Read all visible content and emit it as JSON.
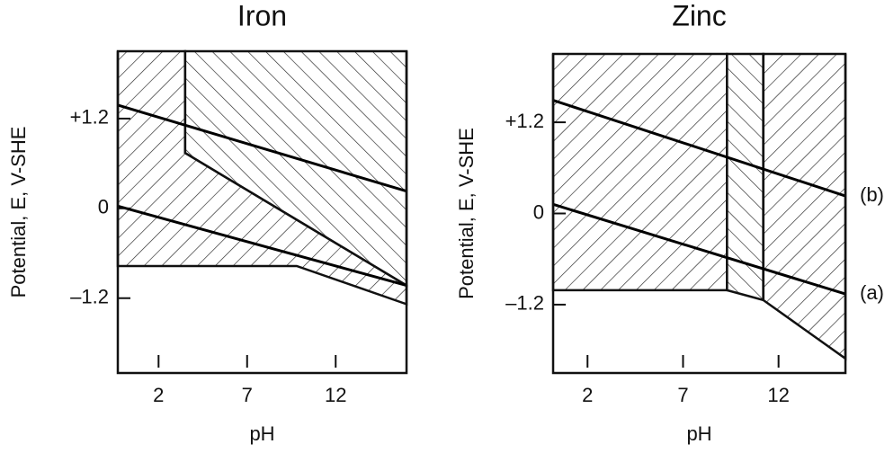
{
  "chart_data": [
    {
      "type": "pourbaix",
      "title": "Iron",
      "xlabel": "pH",
      "ylabel": "Potential, E, V-SHE",
      "xlim": [
        -0.3,
        16.0
      ],
      "ylim": [
        -2.2,
        2.1
      ],
      "xticks": [
        2,
        7,
        12
      ],
      "yticks": [
        {
          "value": 1.2,
          "label": "+1.2"
        },
        0,
        {
          "value": -1.2,
          "label": "–1.2"
        }
      ],
      "regions": [
        {
          "hatch": "/",
          "x": [
            -0.3,
            3.5,
            3.5,
            16.0,
            16.0,
            9.8,
            -0.3
          ],
          "values": [
            2.1,
            2.1,
            0.74,
            -1.03,
            -1.28,
            -0.77,
            -0.77
          ]
        },
        {
          "hatch": "\\",
          "x": [
            3.5,
            16.0,
            16.0,
            3.5
          ],
          "values": [
            2.1,
            2.1,
            -1.03,
            0.74
          ]
        }
      ],
      "series": [
        {
          "color": "#000000",
          "x": [
            -0.3,
            16.0
          ],
          "values": [
            1.38,
            0.23
          ]
        },
        {
          "color": "#000000",
          "x": [
            -0.3,
            16.0
          ],
          "values": [
            0.03,
            -1.03
          ]
        }
      ]
    },
    {
      "type": "pourbaix",
      "title": "Zinc",
      "xlabel": "pH",
      "ylabel": "Potential, E, V-SHE",
      "xlim": [
        0.2,
        15.5
      ],
      "ylim": [
        -2.1,
        2.1
      ],
      "xticks": [
        2,
        7,
        12
      ],
      "yticks": [
        {
          "value": 1.2,
          "label": "+1.2"
        },
        0,
        {
          "value": -1.2,
          "label": "–1.2"
        }
      ],
      "regions": [
        {
          "hatch": "/",
          "x": [
            0.2,
            9.3,
            9.3,
            0.2
          ],
          "values": [
            2.1,
            2.1,
            -1.01,
            -1.01
          ]
        },
        {
          "hatch": "\\",
          "x": [
            9.3,
            11.2,
            11.2,
            9.3
          ],
          "values": [
            2.1,
            2.1,
            -1.14,
            -1.01
          ]
        },
        {
          "hatch": "/",
          "x": [
            11.2,
            15.5,
            15.5,
            11.2
          ],
          "values": [
            2.1,
            2.1,
            -1.91,
            -1.14
          ]
        }
      ],
      "series": [
        {
          "name": "(b)",
          "color": "#000000",
          "x": [
            0.2,
            15.5
          ],
          "values": [
            1.49,
            0.23
          ]
        },
        {
          "name": "(a)",
          "color": "#000000",
          "x": [
            0.2,
            15.5
          ],
          "values": [
            0.12,
            -1.06
          ]
        }
      ]
    }
  ]
}
